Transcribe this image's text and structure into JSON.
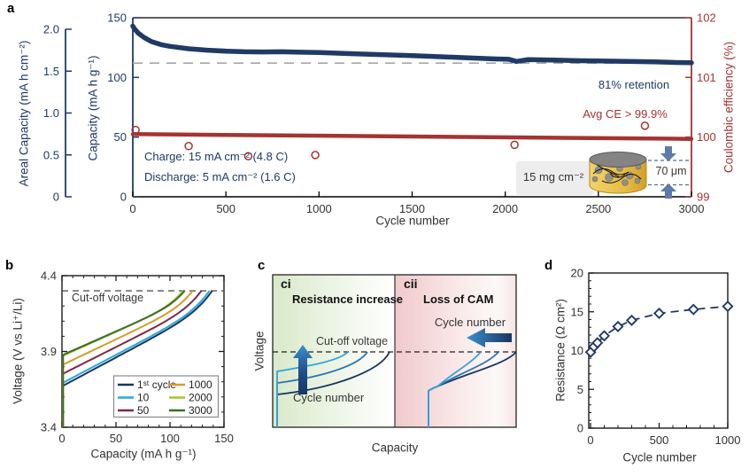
{
  "figure": {
    "labels": {
      "a": "a",
      "b": "b",
      "c": "c",
      "d": "d"
    }
  },
  "chart_data": [
    {
      "id": "a",
      "type": "line",
      "x": {
        "label": "Cycle number",
        "range": [
          0,
          3000
        ],
        "tick_labels": [
          "0",
          "500",
          "1000",
          "1500",
          "2000",
          "2500",
          "3000"
        ],
        "tick_values": [
          0,
          500,
          1000,
          1500,
          2000,
          2500,
          3000
        ]
      },
      "y_left_outer": {
        "label": "Areal Capacity (mA h cm⁻²)",
        "range": [
          0,
          2.0
        ],
        "tick_labels": [
          "0",
          "0.5",
          "1.0",
          "1.5",
          "2.0"
        ],
        "tick_values": [
          0,
          0.5,
          1.0,
          1.5,
          2.0
        ]
      },
      "y_left": {
        "label": "Capacity (mA h g⁻¹)",
        "range": [
          0,
          150
        ],
        "tick_labels": [
          "0",
          "50",
          "100",
          "150"
        ],
        "tick_values": [
          0,
          50,
          100,
          150
        ]
      },
      "y_right": {
        "label": "Coulombic efficiency (%)",
        "range": [
          99,
          102
        ],
        "tick_labels": [
          "99",
          "100",
          "101",
          "102"
        ],
        "tick_values": [
          99,
          100,
          101,
          102
        ]
      },
      "retention_line_capacity": 112,
      "series": [
        {
          "name": "discharge-capacity",
          "axis": "left",
          "color": "#1f3a66",
          "points": [
            [
              0,
              143
            ],
            [
              10,
              140.5
            ],
            [
              30,
              137
            ],
            [
              60,
              133.5
            ],
            [
              100,
              130
            ],
            [
              150,
              127.5
            ],
            [
              200,
              126
            ],
            [
              300,
              124
            ],
            [
              400,
              122.8
            ],
            [
              500,
              122
            ],
            [
              600,
              121.5
            ],
            [
              700,
              121.3
            ],
            [
              800,
              121.5
            ],
            [
              900,
              121.1
            ],
            [
              1000,
              120.8
            ],
            [
              1100,
              120.3
            ],
            [
              1200,
              119.8
            ],
            [
              1350,
              119.0
            ],
            [
              1500,
              118.2
            ],
            [
              1650,
              117.3
            ],
            [
              1800,
              116.4
            ],
            [
              1950,
              115.5
            ],
            [
              2020,
              115.2
            ],
            [
              2060,
              113.4
            ],
            [
              2120,
              114.9
            ],
            [
              2250,
              114.6
            ],
            [
              2400,
              114.0
            ],
            [
              2500,
              113.8
            ],
            [
              2650,
              113.4
            ],
            [
              2800,
              113.0
            ],
            [
              2900,
              112.6
            ],
            [
              3000,
              112.3
            ]
          ]
        },
        {
          "name": "coulombic-efficiency",
          "axis": "right",
          "color": "#a43431",
          "points": [
            [
              0,
              100.05
            ],
            [
              3000,
              99.97
            ]
          ],
          "outliers": [
            [
              15,
              100.12
            ],
            [
              300,
              99.85
            ],
            [
              620,
              99.68
            ],
            [
              980,
              99.7
            ],
            [
              2050,
              99.87
            ],
            [
              2750,
              100.19
            ]
          ]
        }
      ],
      "annotations": {
        "retention": "81% retention",
        "avg_ce": "Avg CE > 99.9%",
        "charge": "Charge: 15 mA cm⁻² (4.8 C)",
        "discharge": "Discharge: 5 mA cm⁻² (1.6 C)",
        "loading": "15 mg cm⁻²",
        "thickness": "70 μm"
      }
    },
    {
      "id": "b",
      "type": "line",
      "x": {
        "label": "Capacity (mA h g⁻¹)",
        "range": [
          0,
          150
        ],
        "tick_labels": [
          "0",
          "50",
          "100",
          "150"
        ],
        "tick_values": [
          0,
          50,
          100,
          150
        ],
        "minor_step": 10
      },
      "y": {
        "label": "Voltage (V vs Li⁺/Li)",
        "range": [
          3.4,
          4.4
        ],
        "tick_labels": [
          "3.4",
          "3.9",
          "4.4"
        ],
        "tick_values": [
          3.4,
          3.9,
          4.4
        ],
        "minor_step": 0.1
      },
      "cutoff_voltage": 4.3,
      "cutoff_label": "Cut-off voltage",
      "series": [
        {
          "label": "1ˢᵗ cycle",
          "color": "#17375d",
          "v_start": 3.67,
          "cap_end": 139
        },
        {
          "label": "10",
          "color": "#29a8dc",
          "v_start": 3.69,
          "cap_end": 136.5
        },
        {
          "label": "50",
          "color": "#7d2a45",
          "v_start": 3.75,
          "cap_end": 129
        },
        {
          "label": "1000",
          "color": "#d89a27",
          "v_start": 3.81,
          "cap_end": 121
        },
        {
          "label": "2000",
          "color": "#a3c62c",
          "v_start": 3.868,
          "cap_end": 112
        },
        {
          "label": "3000",
          "color": "#3f6c28",
          "v_start": 3.875,
          "cap_end": 113.5
        }
      ]
    },
    {
      "id": "c",
      "type": "schematic",
      "xlabel": "Capacity",
      "ylabel": "Voltage",
      "cutoff_label": "Cut-off voltage",
      "cutoff_frac": 0.494,
      "subpanels": [
        {
          "tag": "ci",
          "title": "Resistance increase",
          "bg": "green",
          "arrow": "up",
          "arrow_label": "Cycle number",
          "curves": [
            {
              "color": "#17375d",
              "start_frac": 0.215,
              "end_frac": 0.956
            },
            {
              "color": "#2e75b6",
              "start_frac": 0.29,
              "end_frac": 0.775
            },
            {
              "color": "#35a3dc",
              "start_frac": 0.366,
              "end_frac": 0.616
            }
          ]
        },
        {
          "tag": "cii",
          "title": "Loss of CAM",
          "bg": "pink",
          "arrow": "left",
          "arrow_label": "Cycle number",
          "origin": {
            "x_frac": 0.307,
            "y_frac": 0.256
          },
          "curves": [
            {
              "color": "#17375d",
              "end_frac": 1.0
            },
            {
              "color": "#2e75b6",
              "end_frac": 0.854
            },
            {
              "color": "#35a3dc",
              "end_frac": 0.708
            }
          ]
        }
      ]
    },
    {
      "id": "d",
      "type": "scatter",
      "x": {
        "label": "Cycle number",
        "range": [
          0,
          1000
        ],
        "tick_labels": [
          "0",
          "500",
          "1000"
        ],
        "tick_values": [
          0,
          500,
          1000
        ],
        "minor_step": 100
      },
      "y": {
        "label": "Resistance (Ω cm²)",
        "range": [
          0,
          20
        ],
        "tick_labels": [
          "0",
          "5",
          "10",
          "15",
          "20"
        ],
        "tick_values": [
          0,
          5,
          10,
          15,
          20
        ],
        "minor_step": 1
      },
      "series": [
        {
          "name": "resistance",
          "color": "#1f3a66",
          "marker": "diamond",
          "line": "dashed",
          "points": [
            [
              1,
              9.8
            ],
            [
              25,
              10.5
            ],
            [
              50,
              11.0
            ],
            [
              100,
              11.9
            ],
            [
              200,
              13.1
            ],
            [
              300,
              13.9
            ],
            [
              500,
              14.8
            ],
            [
              750,
              15.3
            ],
            [
              1000,
              15.7
            ]
          ]
        }
      ]
    }
  ],
  "colors": {
    "navy": "#1f3a66",
    "dark_red": "#a43431",
    "retention_dash": "#a6a6a6",
    "arrow_blue_light": "#3c8fd0",
    "arrow_blue_dark": "#173763",
    "inset_arrow": "#5d7aab",
    "gold": "#e9c24f"
  }
}
